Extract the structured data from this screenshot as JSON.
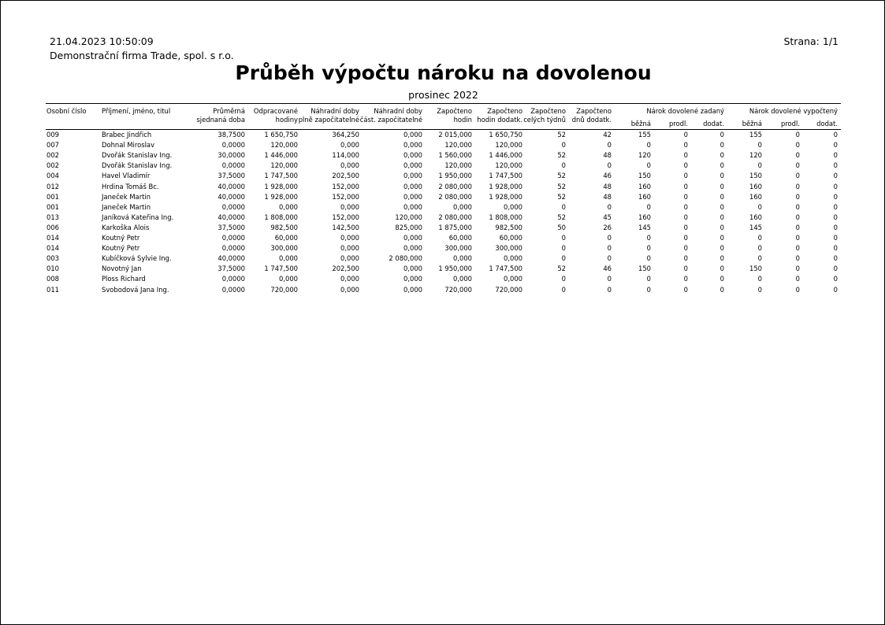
{
  "header": {
    "datetime": "21.04.2023  10:50:09",
    "company": "Demonstrační firma Trade, spol. s r.o.",
    "page": "Strana: 1/1",
    "title": "Průběh výpočtu nároku na dovolenou",
    "period": "prosinec 2022"
  },
  "table": {
    "groups": [
      {
        "label": "Nárok dovolené zadaný"
      },
      {
        "label": "Nárok dovolené vypočtený"
      }
    ],
    "columns": [
      {
        "lines": [
          "Osobní číslo"
        ]
      },
      {
        "lines": [
          "Příjmení, jméno, titul"
        ]
      },
      {
        "lines": [
          "Průměrná",
          "sjednaná doba"
        ]
      },
      {
        "lines": [
          "Odpracované",
          "hodiny"
        ]
      },
      {
        "lines": [
          "Náhradní doby",
          "plně započitatelné"
        ]
      },
      {
        "lines": [
          "Náhradní doby",
          "část. započitatelné"
        ]
      },
      {
        "lines": [
          "Započteno",
          "hodin"
        ]
      },
      {
        "lines": [
          "Započteno",
          "hodin dodatk."
        ]
      },
      {
        "lines": [
          "Započteno",
          "celých týdnů"
        ]
      },
      {
        "lines": [
          "Započteno",
          "dnů dodatk."
        ]
      },
      {
        "lines": [
          "běžná"
        ]
      },
      {
        "lines": [
          "prodl."
        ]
      },
      {
        "lines": [
          "dodat."
        ]
      },
      {
        "lines": [
          "běžná"
        ]
      },
      {
        "lines": [
          "prodl."
        ]
      },
      {
        "lines": [
          "dodat."
        ]
      }
    ],
    "rows": [
      [
        "009",
        "Brabec Jindřich",
        "38,7500",
        "1 650,750",
        "364,250",
        "0,000",
        "2 015,000",
        "1 650,750",
        "52",
        "42",
        "155",
        "0",
        "0",
        "155",
        "0",
        "0"
      ],
      [
        "007",
        "Dohnal Miroslav",
        "0,0000",
        "120,000",
        "0,000",
        "0,000",
        "120,000",
        "120,000",
        "0",
        "0",
        "0",
        "0",
        "0",
        "0",
        "0",
        "0"
      ],
      [
        "002",
        "Dvořák Stanislav Ing.",
        "30,0000",
        "1 446,000",
        "114,000",
        "0,000",
        "1 560,000",
        "1 446,000",
        "52",
        "48",
        "120",
        "0",
        "0",
        "120",
        "0",
        "0"
      ],
      [
        "002",
        "Dvořák Stanislav Ing.",
        "0,0000",
        "120,000",
        "0,000",
        "0,000",
        "120,000",
        "120,000",
        "0",
        "0",
        "0",
        "0",
        "0",
        "0",
        "0",
        "0"
      ],
      [
        "004",
        "Havel Vladimír",
        "37,5000",
        "1 747,500",
        "202,500",
        "0,000",
        "1 950,000",
        "1 747,500",
        "52",
        "46",
        "150",
        "0",
        "0",
        "150",
        "0",
        "0"
      ],
      [
        "012",
        "Hrdina Tomáš Bc.",
        "40,0000",
        "1 928,000",
        "152,000",
        "0,000",
        "2 080,000",
        "1 928,000",
        "52",
        "48",
        "160",
        "0",
        "0",
        "160",
        "0",
        "0"
      ],
      [
        "001",
        "Janeček Martin",
        "40,0000",
        "1 928,000",
        "152,000",
        "0,000",
        "2 080,000",
        "1 928,000",
        "52",
        "48",
        "160",
        "0",
        "0",
        "160",
        "0",
        "0"
      ],
      [
        "001",
        "Janeček Martin",
        "0,0000",
        "0,000",
        "0,000",
        "0,000",
        "0,000",
        "0,000",
        "0",
        "0",
        "0",
        "0",
        "0",
        "0",
        "0",
        "0"
      ],
      [
        "013",
        "Janíková Kateřina Ing.",
        "40,0000",
        "1 808,000",
        "152,000",
        "120,000",
        "2 080,000",
        "1 808,000",
        "52",
        "45",
        "160",
        "0",
        "0",
        "160",
        "0",
        "0"
      ],
      [
        "006",
        "Karkoška Alois",
        "37,5000",
        "982,500",
        "142,500",
        "825,000",
        "1 875,000",
        "982,500",
        "50",
        "26",
        "145",
        "0",
        "0",
        "145",
        "0",
        "0"
      ],
      [
        "014",
        "Koutný Petr",
        "0,0000",
        "60,000",
        "0,000",
        "0,000",
        "60,000",
        "60,000",
        "0",
        "0",
        "0",
        "0",
        "0",
        "0",
        "0",
        "0"
      ],
      [
        "014",
        "Koutný Petr",
        "0,0000",
        "300,000",
        "0,000",
        "0,000",
        "300,000",
        "300,000",
        "0",
        "0",
        "0",
        "0",
        "0",
        "0",
        "0",
        "0"
      ],
      [
        "003",
        "Kubíčková Sylvie Ing.",
        "40,0000",
        "0,000",
        "0,000",
        "2 080,000",
        "0,000",
        "0,000",
        "0",
        "0",
        "0",
        "0",
        "0",
        "0",
        "0",
        "0"
      ],
      [
        "010",
        "Novotný Jan",
        "37,5000",
        "1 747,500",
        "202,500",
        "0,000",
        "1 950,000",
        "1 747,500",
        "52",
        "46",
        "150",
        "0",
        "0",
        "150",
        "0",
        "0"
      ],
      [
        "008",
        "Ploss Richard",
        "0,0000",
        "0,000",
        "0,000",
        "0,000",
        "0,000",
        "0,000",
        "0",
        "0",
        "0",
        "0",
        "0",
        "0",
        "0",
        "0"
      ],
      [
        "011",
        "Svobodová Jana Ing.",
        "0,0000",
        "720,000",
        "0,000",
        "0,000",
        "720,000",
        "720,000",
        "0",
        "0",
        "0",
        "0",
        "0",
        "0",
        "0",
        "0"
      ]
    ]
  }
}
